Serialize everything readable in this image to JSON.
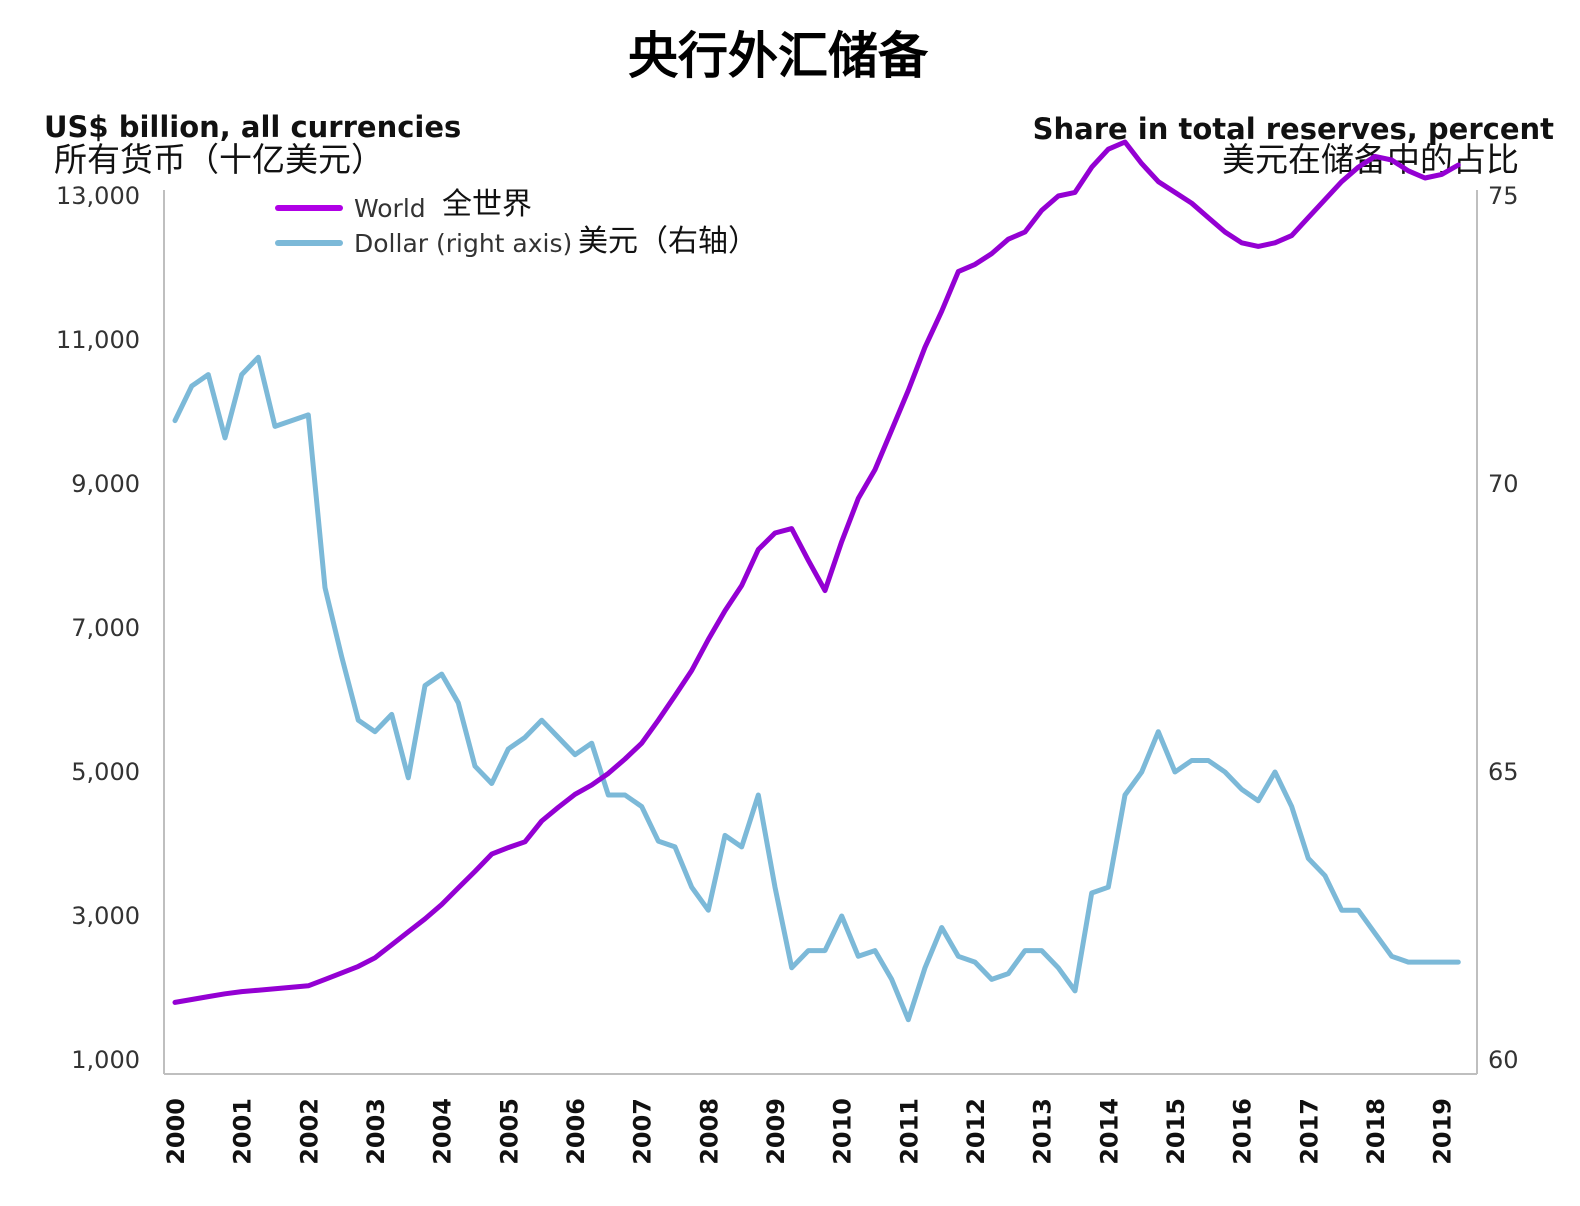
{
  "chart_data": {
    "type": "line",
    "title": "央行外汇储备",
    "ylabel_left": "US$ billion, all currencies",
    "ylabel_left_zh": "所有货币（十亿美元）",
    "ylabel_right": "Share in total reserves, percent",
    "ylabel_right_zh": "美元在储备中的占比",
    "y_left_ticks": [
      "13,000",
      "11,000",
      "9,000",
      "7,000",
      "5,000",
      "3,000",
      "1,000"
    ],
    "y_right_ticks": [
      "75",
      "70",
      "65",
      "60"
    ],
    "ylim_left": [
      1000,
      13000
    ],
    "ylim_right": [
      60,
      75
    ],
    "x_tick_labels": [
      "2000",
      "2001",
      "2002",
      "2003",
      "2004",
      "2005",
      "2006",
      "2007",
      "2008",
      "2009",
      "2010",
      "2011",
      "2012",
      "2013",
      "2014",
      "2015",
      "2016",
      "2017",
      "2018",
      "2019"
    ],
    "legend": {
      "placement": "top-left"
    },
    "series": [
      {
        "name": "World",
        "name_zh": "全世界",
        "color": "#9400d3",
        "axis": "left",
        "points": [
          [
            2000.0,
            1800
          ],
          [
            2000.25,
            1840
          ],
          [
            2000.5,
            1880
          ],
          [
            2000.75,
            1920
          ],
          [
            2001.0,
            1950
          ],
          [
            2001.25,
            1970
          ],
          [
            2001.5,
            1990
          ],
          [
            2001.75,
            2010
          ],
          [
            2002.0,
            2030
          ],
          [
            2002.25,
            2120
          ],
          [
            2002.5,
            2210
          ],
          [
            2002.75,
            2300
          ],
          [
            2003.0,
            2420
          ],
          [
            2003.25,
            2600
          ],
          [
            2003.5,
            2780
          ],
          [
            2003.75,
            2960
          ],
          [
            2004.0,
            3160
          ],
          [
            2004.25,
            3390
          ],
          [
            2004.5,
            3620
          ],
          [
            2004.75,
            3860
          ],
          [
            2005.0,
            3950
          ],
          [
            2005.25,
            4030
          ],
          [
            2005.5,
            4320
          ],
          [
            2005.75,
            4510
          ],
          [
            2006.0,
            4690
          ],
          [
            2006.25,
            4820
          ],
          [
            2006.5,
            4980
          ],
          [
            2006.75,
            5180
          ],
          [
            2007.0,
            5400
          ],
          [
            2007.25,
            5720
          ],
          [
            2007.5,
            6060
          ],
          [
            2007.75,
            6410
          ],
          [
            2008.0,
            6840
          ],
          [
            2008.25,
            7240
          ],
          [
            2008.5,
            7590
          ],
          [
            2008.75,
            8090
          ],
          [
            2009.0,
            8320
          ],
          [
            2009.25,
            8380
          ],
          [
            2009.5,
            7940
          ],
          [
            2009.75,
            7520
          ],
          [
            2010.0,
            8200
          ],
          [
            2010.25,
            8800
          ],
          [
            2010.5,
            9200
          ],
          [
            2010.75,
            9750
          ],
          [
            2011.0,
            10300
          ],
          [
            2011.25,
            10900
          ],
          [
            2011.5,
            11400
          ],
          [
            2011.75,
            11950
          ],
          [
            2012.0,
            12050
          ],
          [
            2012.25,
            12200
          ],
          [
            2012.5,
            12400
          ],
          [
            2012.75,
            12500
          ],
          [
            2013.0,
            12800
          ],
          [
            2013.25,
            13000
          ],
          [
            2013.5,
            13050
          ],
          [
            2013.75,
            13400
          ],
          [
            2014.0,
            13650
          ],
          [
            2014.25,
            13750
          ],
          [
            2014.5,
            13450
          ],
          [
            2014.75,
            13200
          ],
          [
            2015.0,
            13050
          ],
          [
            2015.25,
            12900
          ],
          [
            2015.5,
            12700
          ],
          [
            2015.75,
            12500
          ],
          [
            2016.0,
            12350
          ],
          [
            2016.25,
            12300
          ],
          [
            2016.5,
            12350
          ],
          [
            2016.75,
            12450
          ],
          [
            2017.0,
            12700
          ],
          [
            2017.25,
            12950
          ],
          [
            2017.5,
            13200
          ],
          [
            2017.75,
            13400
          ],
          [
            2018.0,
            13550
          ],
          [
            2018.25,
            13500
          ],
          [
            2018.5,
            13350
          ],
          [
            2018.75,
            13250
          ],
          [
            2019.0,
            13300
          ],
          [
            2019.25,
            13430
          ]
        ]
      },
      {
        "name": "Dollar (right axis)",
        "name_zh": "美元（右轴）",
        "color": "#7cb9d8",
        "axis": "right",
        "points": [
          [
            2000.0,
            71.1
          ],
          [
            2000.25,
            71.7
          ],
          [
            2000.5,
            71.9
          ],
          [
            2000.75,
            70.8
          ],
          [
            2001.0,
            71.9
          ],
          [
            2001.25,
            72.2
          ],
          [
            2001.5,
            71.0
          ],
          [
            2001.75,
            71.1
          ],
          [
            2002.0,
            71.2
          ],
          [
            2002.25,
            68.2
          ],
          [
            2002.5,
            67.0
          ],
          [
            2002.75,
            65.9
          ],
          [
            2003.0,
            65.7
          ],
          [
            2003.25,
            66.0
          ],
          [
            2003.5,
            64.9
          ],
          [
            2003.75,
            66.5
          ],
          [
            2004.0,
            66.7
          ],
          [
            2004.25,
            66.2
          ],
          [
            2004.5,
            65.1
          ],
          [
            2004.75,
            64.8
          ],
          [
            2005.0,
            65.4
          ],
          [
            2005.25,
            65.6
          ],
          [
            2005.5,
            65.9
          ],
          [
            2005.75,
            65.6
          ],
          [
            2006.0,
            65.3
          ],
          [
            2006.25,
            65.5
          ],
          [
            2006.5,
            64.6
          ],
          [
            2006.75,
            64.6
          ],
          [
            2007.0,
            64.4
          ],
          [
            2007.25,
            63.8
          ],
          [
            2007.5,
            63.7
          ],
          [
            2007.75,
            63.0
          ],
          [
            2008.0,
            62.6
          ],
          [
            2008.25,
            63.9
          ],
          [
            2008.5,
            63.7
          ],
          [
            2008.75,
            64.6
          ],
          [
            2009.0,
            63.0
          ],
          [
            2009.25,
            61.6
          ],
          [
            2009.5,
            61.9
          ],
          [
            2009.75,
            61.9
          ],
          [
            2010.0,
            62.5
          ],
          [
            2010.25,
            61.8
          ],
          [
            2010.5,
            61.9
          ],
          [
            2010.75,
            61.4
          ],
          [
            2011.0,
            60.7
          ],
          [
            2011.25,
            61.6
          ],
          [
            2011.5,
            62.3
          ],
          [
            2011.75,
            61.8
          ],
          [
            2012.0,
            61.7
          ],
          [
            2012.25,
            61.4
          ],
          [
            2012.5,
            61.5
          ],
          [
            2012.75,
            61.9
          ],
          [
            2013.0,
            61.9
          ],
          [
            2013.25,
            61.6
          ],
          [
            2013.5,
            61.2
          ],
          [
            2013.75,
            62.9
          ],
          [
            2014.0,
            63.0
          ],
          [
            2014.25,
            64.6
          ],
          [
            2014.5,
            65.0
          ],
          [
            2014.75,
            65.7
          ],
          [
            2015.0,
            65.0
          ],
          [
            2015.25,
            65.2
          ],
          [
            2015.5,
            65.2
          ],
          [
            2015.75,
            65.0
          ],
          [
            2016.0,
            64.7
          ],
          [
            2016.25,
            64.5
          ],
          [
            2016.5,
            65.0
          ],
          [
            2016.75,
            64.4
          ],
          [
            2017.0,
            63.5
          ],
          [
            2017.25,
            63.2
          ],
          [
            2017.5,
            62.6
          ],
          [
            2017.75,
            62.6
          ],
          [
            2018.0,
            62.2
          ],
          [
            2018.25,
            61.8
          ],
          [
            2018.5,
            61.7
          ],
          [
            2018.75,
            61.7
          ],
          [
            2019.0,
            61.7
          ],
          [
            2019.25,
            61.7
          ]
        ]
      }
    ]
  }
}
